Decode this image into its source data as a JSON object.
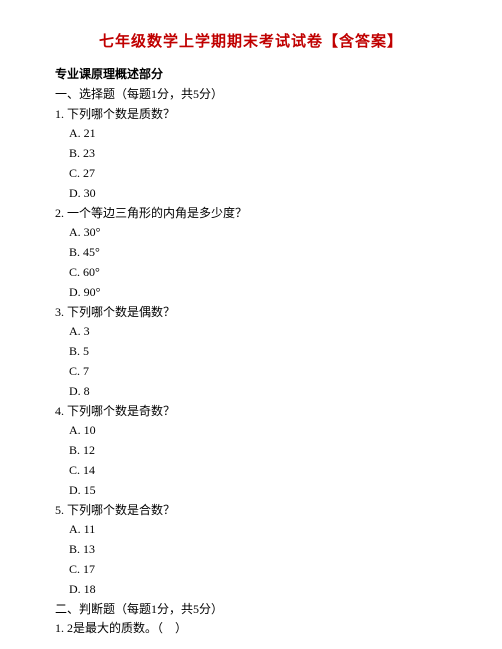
{
  "title": "七年级数学上学期期末考试试卷【含答案】",
  "subheader": "专业课原理概述部分",
  "section1": "一、选择题（每题1分，共5分）",
  "q1": {
    "stem": "1. 下列哪个数是质数？",
    "a": "A. 21",
    "b": "B. 23",
    "c": "C. 27",
    "d": "D. 30"
  },
  "q2": {
    "stem": "2. 一个等边三角形的内角是多少度？",
    "a": "A. 30°",
    "b": "B. 45°",
    "c": "C. 60°",
    "d": "D. 90°"
  },
  "q3": {
    "stem": "3. 下列哪个数是偶数？",
    "a": "A. 3",
    "b": "B. 5",
    "c": "C. 7",
    "d": "D. 8"
  },
  "q4": {
    "stem": "4. 下列哪个数是奇数？",
    "a": "A. 10",
    "b": "B. 12",
    "c": "C. 14",
    "d": "D. 15"
  },
  "q5": {
    "stem": "5. 下列哪个数是合数？",
    "a": "A. 11",
    "b": "B. 13",
    "c": "C. 17",
    "d": "D. 18"
  },
  "section2": "二、判断题（每题1分，共5分）",
  "j1": "1. 2是最大的质数。（　）"
}
